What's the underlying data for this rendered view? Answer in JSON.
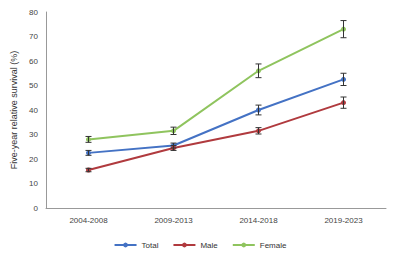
{
  "chart_data": {
    "type": "line",
    "y_label": "Five-year relative survival (%)",
    "categories": [
      "2004-2008",
      "2009-2013",
      "2014-2018",
      "2019-2023"
    ],
    "series": [
      {
        "name": "Total",
        "color": "#4472c4",
        "marker": "circle",
        "values": [
          22.5,
          25.5,
          40,
          52.5
        ],
        "errors": [
          1,
          1,
          2,
          2.5
        ]
      },
      {
        "name": "Male",
        "color": "#b03a3e",
        "marker": "circle",
        "values": [
          15.5,
          24.5,
          31.5,
          43
        ],
        "errors": [
          0.7,
          1,
          1.3,
          2.3
        ]
      },
      {
        "name": "Female",
        "color": "#8fc45e",
        "marker": "circle",
        "values": [
          28,
          31.5,
          56,
          73
        ],
        "errors": [
          1.2,
          1.5,
          2.8,
          3.5
        ]
      }
    ],
    "ylim": [
      0,
      80
    ],
    "yticks": [
      0,
      10,
      20,
      30,
      40,
      50,
      60,
      70,
      80
    ],
    "grid": false,
    "legend": "bottom"
  }
}
